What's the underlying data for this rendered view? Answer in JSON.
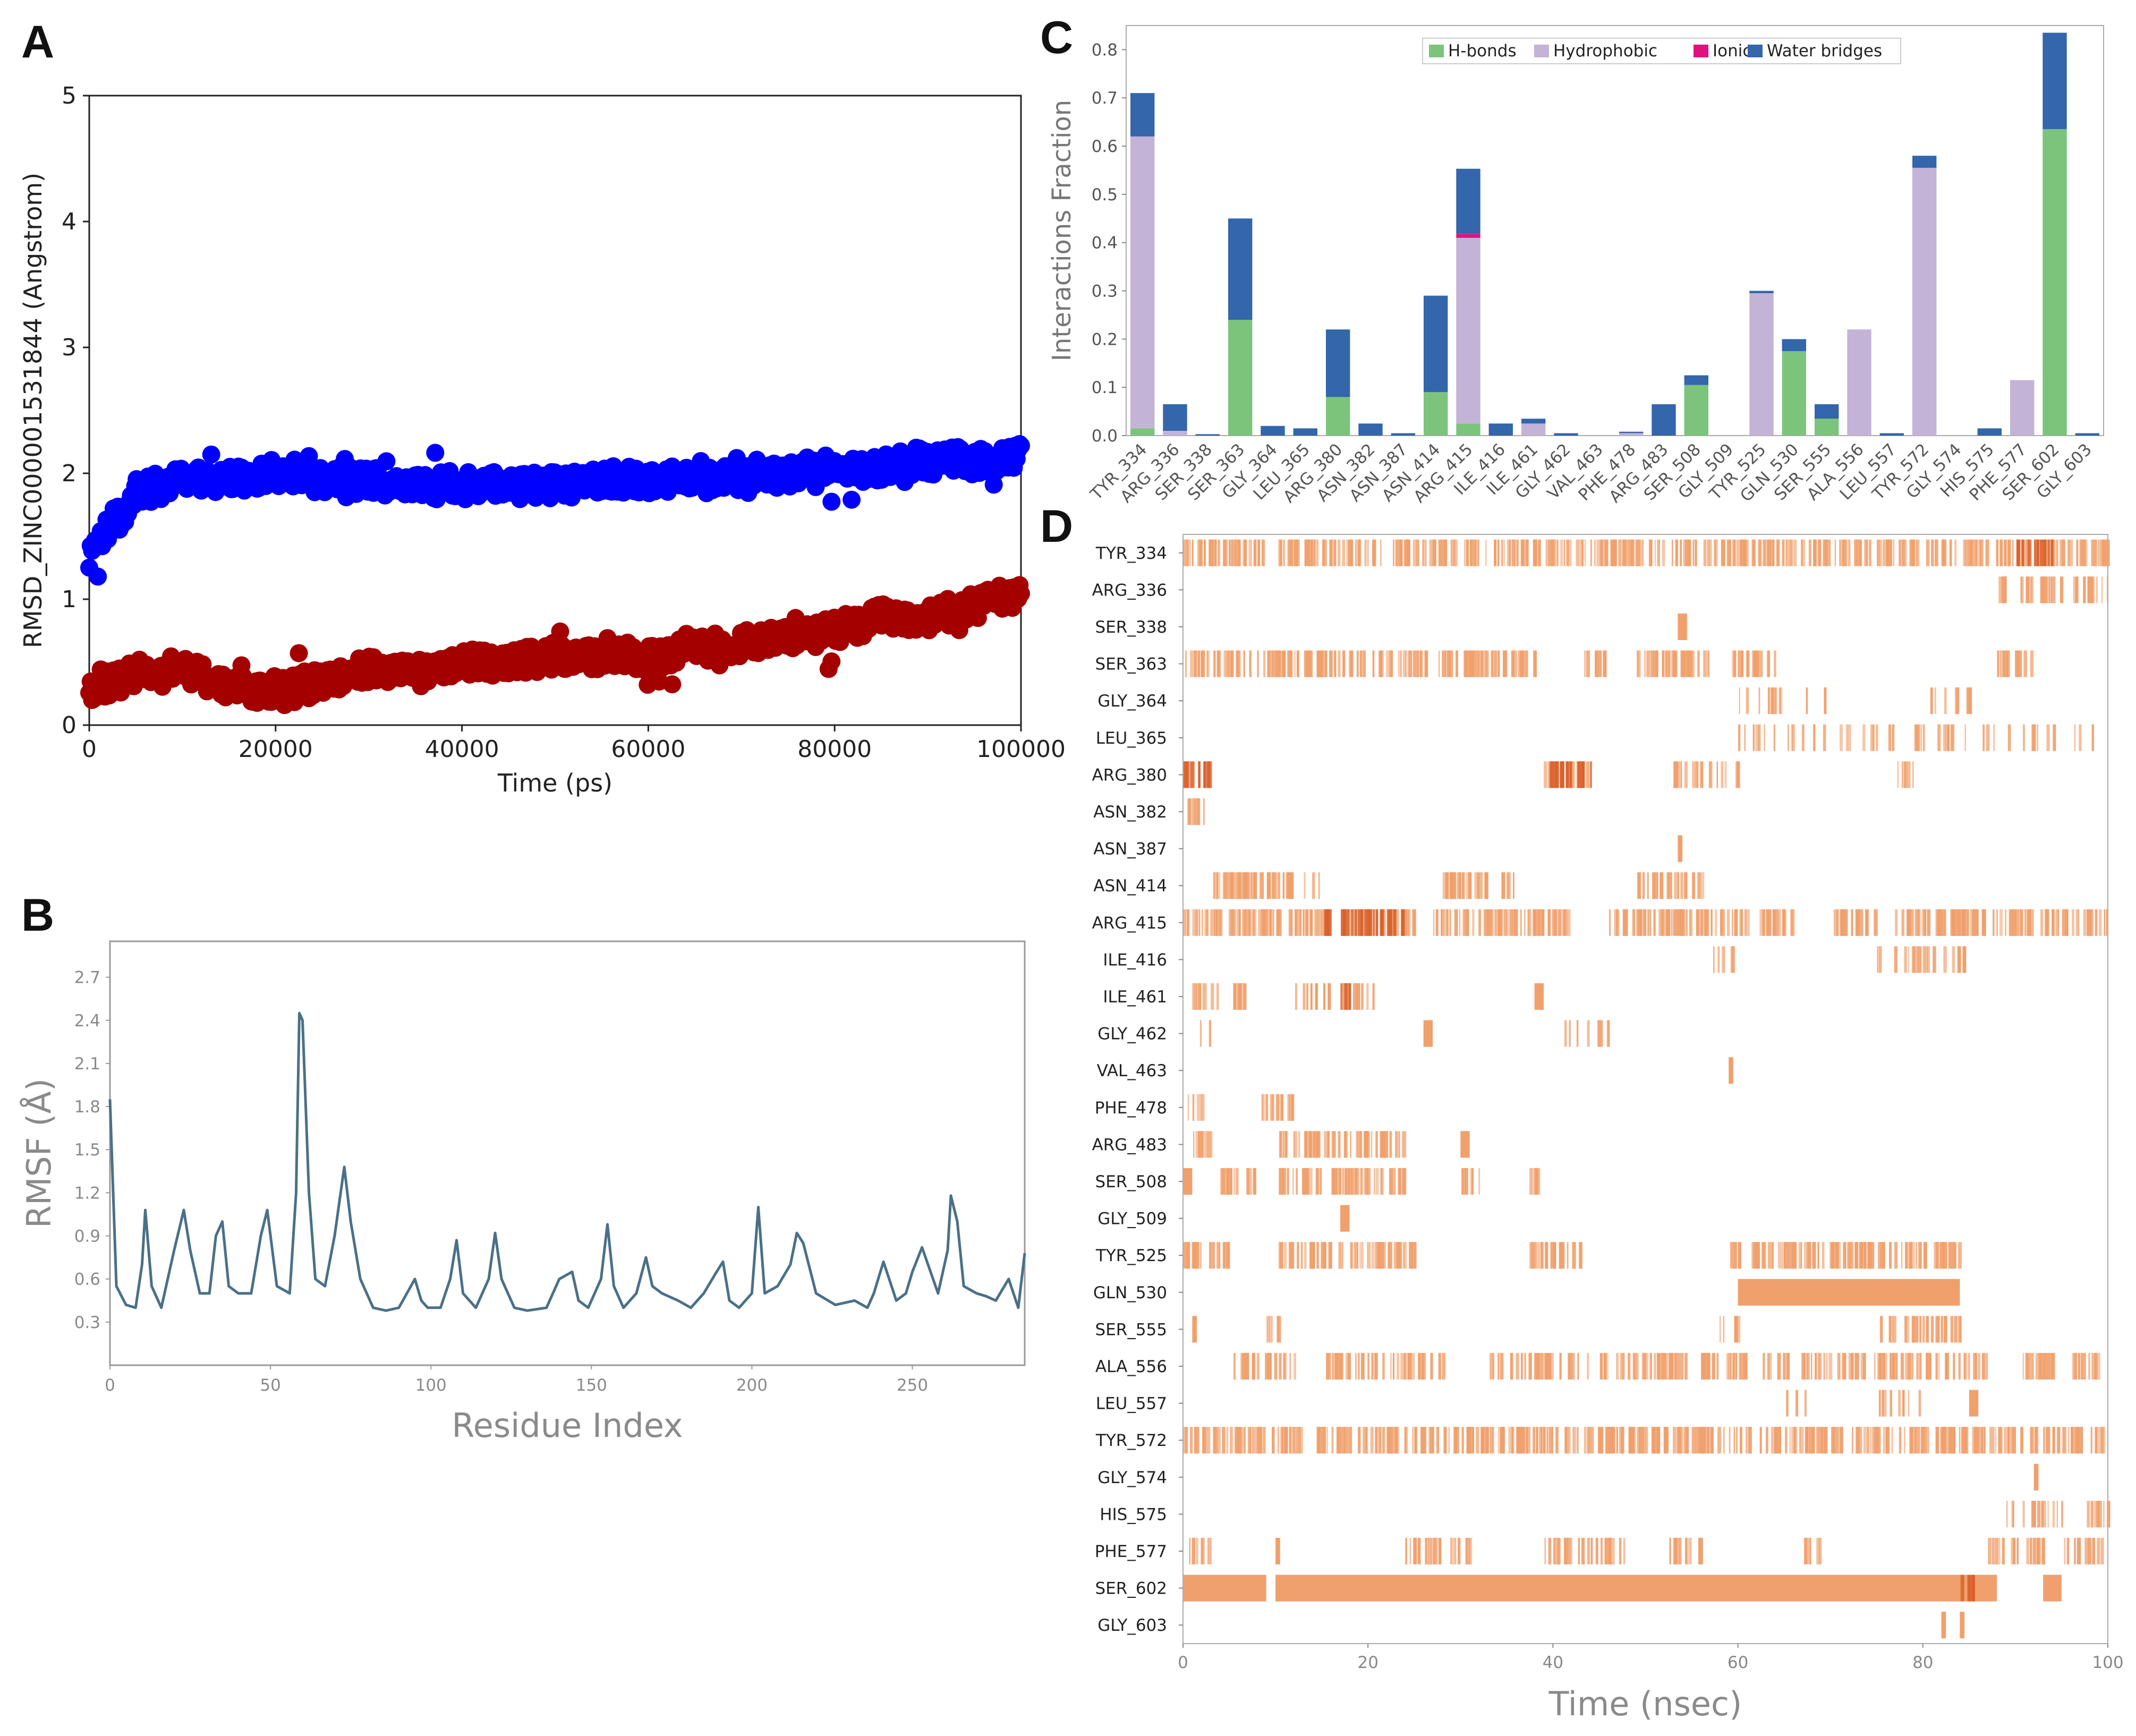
{
  "chart_data": [
    {
      "panel": "A",
      "type": "scatter",
      "title": "",
      "xlabel": "Time (ps)",
      "ylabel": "RMSD_ZINC000001531844 (Angstrom)",
      "xlim": [
        0,
        100000
      ],
      "ylim": [
        0,
        5
      ],
      "xticks": [
        "0",
        "20000",
        "40000",
        "60000",
        "80000",
        "100000"
      ],
      "yticks": [
        "0",
        "1",
        "2",
        "3",
        "4",
        "5"
      ],
      "series": [
        {
          "name": "blue",
          "color": "#0000ff",
          "x": [
            0,
            5000,
            10000,
            15000,
            20000,
            25000,
            30000,
            35000,
            40000,
            45000,
            50000,
            55000,
            60000,
            65000,
            70000,
            75000,
            80000,
            85000,
            90000,
            95000,
            100000
          ],
          "values": [
            1.3,
            1.85,
            1.95,
            1.95,
            2.0,
            1.95,
            1.95,
            1.9,
            1.9,
            1.9,
            1.9,
            1.95,
            1.95,
            1.95,
            1.95,
            2.0,
            2.05,
            2.05,
            2.1,
            2.1,
            2.15
          ]
        },
        {
          "name": "red",
          "color": "#a50000",
          "x": [
            0,
            5000,
            10000,
            15000,
            20000,
            25000,
            30000,
            35000,
            40000,
            45000,
            50000,
            55000,
            60000,
            65000,
            70000,
            75000,
            80000,
            85000,
            90000,
            95000,
            100000
          ],
          "values": [
            0.3,
            0.4,
            0.45,
            0.3,
            0.25,
            0.35,
            0.45,
            0.4,
            0.5,
            0.5,
            0.55,
            0.55,
            0.55,
            0.6,
            0.65,
            0.7,
            0.75,
            0.85,
            0.85,
            0.95,
            1.05
          ]
        }
      ]
    },
    {
      "panel": "B",
      "type": "line",
      "title": "",
      "xlabel": "Residue Index",
      "ylabel": "RMSF (Å)",
      "xlim": [
        0,
        285
      ],
      "ylim": [
        0,
        2.95
      ],
      "xticks": [
        "0",
        "50",
        "100",
        "150",
        "200",
        "250"
      ],
      "yticks": [
        "0.3",
        "0.6",
        "0.9",
        "1.2",
        "1.5",
        "1.8",
        "2.1",
        "2.4",
        "2.7"
      ],
      "line_color": "#4a7088",
      "x": [
        0,
        2,
        5,
        8,
        10,
        11,
        13,
        16,
        20,
        23,
        25,
        28,
        31,
        33,
        35,
        37,
        40,
        44,
        47,
        49,
        52,
        56,
        58,
        59,
        60,
        62,
        64,
        67,
        70,
        73,
        75,
        78,
        82,
        86,
        90,
        95,
        97,
        99,
        103,
        106,
        108,
        110,
        114,
        118,
        120,
        122,
        126,
        130,
        136,
        140,
        144,
        146,
        149,
        153,
        155,
        157,
        160,
        164,
        167,
        169,
        172,
        177,
        181,
        185,
        189,
        191,
        193,
        196,
        200,
        202,
        204,
        208,
        212,
        214,
        216,
        220,
        226,
        232,
        236,
        238,
        241,
        245,
        248,
        250,
        253,
        258,
        261,
        262,
        264,
        266,
        270,
        273,
        276,
        280,
        283,
        285
      ],
      "values": [
        1.85,
        0.55,
        0.42,
        0.4,
        0.7,
        1.08,
        0.55,
        0.4,
        0.8,
        1.08,
        0.8,
        0.5,
        0.5,
        0.9,
        1.0,
        0.55,
        0.5,
        0.5,
        0.9,
        1.08,
        0.55,
        0.5,
        1.2,
        2.45,
        2.4,
        1.2,
        0.6,
        0.55,
        0.9,
        1.38,
        1.0,
        0.6,
        0.4,
        0.38,
        0.4,
        0.6,
        0.45,
        0.4,
        0.4,
        0.6,
        0.87,
        0.5,
        0.4,
        0.6,
        0.92,
        0.6,
        0.4,
        0.38,
        0.4,
        0.6,
        0.65,
        0.45,
        0.4,
        0.6,
        0.98,
        0.55,
        0.4,
        0.5,
        0.75,
        0.55,
        0.5,
        0.45,
        0.4,
        0.5,
        0.65,
        0.72,
        0.45,
        0.4,
        0.5,
        1.1,
        0.5,
        0.55,
        0.7,
        0.92,
        0.85,
        0.5,
        0.42,
        0.45,
        0.4,
        0.5,
        0.72,
        0.45,
        0.5,
        0.65,
        0.82,
        0.5,
        0.8,
        1.18,
        1.0,
        0.55,
        0.5,
        0.48,
        0.45,
        0.6,
        0.4,
        0.78
      ]
    },
    {
      "panel": "C",
      "type": "bar",
      "stacked": true,
      "title": "",
      "xlabel": "",
      "ylabel": "Interactions Fraction",
      "ylim": [
        0,
        0.85
      ],
      "yticks": [
        "0.0",
        "0.1",
        "0.2",
        "0.3",
        "0.4",
        "0.5",
        "0.6",
        "0.7",
        "0.8"
      ],
      "legend_position": "top-center",
      "categories": [
        "TYR_334",
        "ARG_336",
        "SER_338",
        "SER_363",
        "GLY_364",
        "LEU_365",
        "ARG_380",
        "ASN_382",
        "ASN_387",
        "ASN_414",
        "ARG_415",
        "ILE_416",
        "ILE_461",
        "GLY_462",
        "VAL_463",
        "PHE_478",
        "ARG_483",
        "SER_508",
        "GLY_509",
        "TYR_525",
        "GLN_530",
        "SER_555",
        "ALA_556",
        "LEU_557",
        "TYR_572",
        "GLY_574",
        "HIS_575",
        "PHE_577",
        "SER_602",
        "GLY_603"
      ],
      "series": [
        {
          "name": "H-bonds",
          "color": "#7cc47c",
          "values": [
            0.015,
            0.0,
            0.0,
            0.24,
            0.0,
            0.0,
            0.08,
            0.0,
            0.0,
            0.09,
            0.025,
            0.0,
            0.0,
            0.0,
            0.0,
            0.0,
            0.0,
            0.105,
            0.0,
            0.0,
            0.175,
            0.035,
            0.0,
            0.0,
            0.0,
            0.0,
            0.0,
            0.0,
            0.635,
            0.0
          ]
        },
        {
          "name": "Hydrophobic",
          "color": "#c3b3d6",
          "values": [
            0.605,
            0.01,
            0.0,
            0.0,
            0.0,
            0.0,
            0.0,
            0.0,
            0.0,
            0.0,
            0.385,
            0.0,
            0.025,
            0.0,
            0.0,
            0.005,
            0.0,
            0.0,
            0.0,
            0.295,
            0.0,
            0.0,
            0.22,
            0.0,
            0.555,
            0.0,
            0.0,
            0.115,
            0.0,
            0.0
          ]
        },
        {
          "name": "Ionic",
          "color": "#e0117f",
          "values": [
            0.0,
            0.0,
            0.0,
            0.0,
            0.0,
            0.0,
            0.0,
            0.0,
            0.0,
            0.0,
            0.008,
            0.0,
            0.0,
            0.0,
            0.0,
            0.0,
            0.0,
            0.0,
            0.0,
            0.0,
            0.0,
            0.0,
            0.0,
            0.0,
            0.0,
            0.0,
            0.0,
            0.0,
            0.0,
            0.0
          ]
        },
        {
          "name": "Water bridges",
          "color": "#3366aa",
          "values": [
            0.09,
            0.055,
            0.003,
            0.21,
            0.02,
            0.015,
            0.14,
            0.025,
            0.005,
            0.2,
            0.135,
            0.025,
            0.01,
            0.005,
            0.0,
            0.003,
            0.065,
            0.02,
            0.0,
            0.005,
            0.025,
            0.03,
            0.0,
            0.005,
            0.025,
            0.0,
            0.015,
            0.0,
            0.2,
            0.005
          ]
        }
      ]
    },
    {
      "panel": "D",
      "type": "heatmap",
      "title": "",
      "xlabel": "Time (nsec)",
      "ylabel": "",
      "xlim": [
        0,
        100
      ],
      "xticks": [
        "0",
        "20",
        "40",
        "60",
        "80",
        "100"
      ],
      "color": "#f0a06c",
      "dark_color": "#d8602c",
      "rows": [
        {
          "label": "TYR_334",
          "density": 0.7,
          "segments": [
            [
              0,
              100
            ]
          ],
          "dark": [
            [
              90,
              94
            ]
          ]
        },
        {
          "label": "ARG_336",
          "density": 0.6,
          "segments": [
            [
              88,
              100
            ]
          ],
          "dark": []
        },
        {
          "label": "SER_338",
          "density": 0.6,
          "segments": [
            [
              53.5,
              54.5
            ]
          ],
          "dark": []
        },
        {
          "label": "SER_363",
          "density": 0.75,
          "segments": [
            [
              0,
              38
            ],
            [
              43,
              46
            ],
            [
              49,
              57
            ],
            [
              59,
              64
            ],
            [
              88,
              92
            ]
          ],
          "dark": []
        },
        {
          "label": "GLY_364",
          "density": 0.25,
          "segments": [
            [
              60,
              70
            ],
            [
              80,
              85
            ]
          ],
          "dark": []
        },
        {
          "label": "LEU_365",
          "density": 0.2,
          "segments": [
            [
              60,
              100
            ]
          ],
          "dark": []
        },
        {
          "label": "ARG_380",
          "density": 0.6,
          "segments": [
            [
              0,
              3
            ],
            [
              39,
              44.5
            ],
            [
              53,
              60
            ],
            [
              77,
              79
            ]
          ],
          "dark": [
            [
              0,
              3
            ],
            [
              39,
              44
            ]
          ]
        },
        {
          "label": "ASN_382",
          "density": 0.8,
          "segments": [
            [
              0,
              2.5
            ]
          ],
          "dark": []
        },
        {
          "label": "ASN_387",
          "density": 0.9,
          "segments": [
            [
              53.5,
              54
            ]
          ],
          "dark": []
        },
        {
          "label": "ASN_414",
          "density": 0.75,
          "segments": [
            [
              3,
              15
            ],
            [
              28,
              36
            ],
            [
              49,
              56
            ]
          ],
          "dark": []
        },
        {
          "label": "ARG_415",
          "density": 0.75,
          "segments": [
            [
              0,
              25
            ],
            [
              27,
              42
            ],
            [
              46,
              66
            ],
            [
              70,
              100
            ]
          ],
          "dark": [
            [
              15,
              24
            ]
          ]
        },
        {
          "label": "ILE_416",
          "density": 0.4,
          "segments": [
            [
              57,
              60
            ],
            [
              75,
              85
            ]
          ],
          "dark": []
        },
        {
          "label": "ILE_461",
          "density": 0.4,
          "segments": [
            [
              0.5,
              7
            ],
            [
              11,
              21
            ],
            [
              38,
              39
            ]
          ],
          "dark": [
            [
              17,
              18
            ]
          ]
        },
        {
          "label": "GLY_462",
          "density": 0.25,
          "segments": [
            [
              1,
              3
            ],
            [
              26,
              27
            ],
            [
              41,
              46
            ]
          ],
          "dark": []
        },
        {
          "label": "VAL_463",
          "density": 1.0,
          "segments": [
            [
              59,
              59.5
            ]
          ],
          "dark": []
        },
        {
          "label": "PHE_478",
          "density": 0.5,
          "segments": [
            [
              0.5,
              2
            ],
            [
              8,
              13
            ]
          ],
          "dark": []
        },
        {
          "label": "ARG_483",
          "density": 0.75,
          "segments": [
            [
              1,
              3
            ],
            [
              10,
              24
            ],
            [
              30,
              31
            ]
          ],
          "dark": []
        },
        {
          "label": "SER_508",
          "density": 0.75,
          "segments": [
            [
              0,
              1
            ],
            [
              4,
              8
            ],
            [
              10,
              24
            ],
            [
              30,
              32
            ],
            [
              37,
              38.5
            ]
          ],
          "dark": []
        },
        {
          "label": "GLY_509",
          "density": 0.6,
          "segments": [
            [
              17,
              18
            ]
          ],
          "dark": []
        },
        {
          "label": "TYR_525",
          "density": 0.75,
          "segments": [
            [
              0,
              5
            ],
            [
              10,
              25
            ],
            [
              37,
              43
            ],
            [
              59,
              84
            ]
          ],
          "dark": []
        },
        {
          "label": "GLN_530",
          "density": 0.95,
          "segments": [
            [
              60,
              84
            ]
          ],
          "dark": []
        },
        {
          "label": "SER_555",
          "density": 0.6,
          "segments": [
            [
              1,
              1.5
            ],
            [
              9,
              10.5
            ],
            [
              58,
              60
            ],
            [
              75,
              84
            ]
          ],
          "dark": []
        },
        {
          "label": "ALA_556",
          "density": 0.6,
          "segments": [
            [
              5,
              12
            ],
            [
              15,
              28
            ],
            [
              33,
              60
            ],
            [
              60,
              87
            ],
            [
              90,
              100
            ]
          ],
          "dark": []
        },
        {
          "label": "LEU_557",
          "density": 0.3,
          "segments": [
            [
              65,
              68
            ],
            [
              75,
              80
            ],
            [
              85,
              86
            ]
          ],
          "dark": []
        },
        {
          "label": "TYR_572",
          "density": 0.75,
          "segments": [
            [
              0,
              100
            ]
          ],
          "dark": []
        },
        {
          "label": "GLY_574",
          "density": 1.0,
          "segments": [
            [
              92,
              92.5
            ]
          ],
          "dark": []
        },
        {
          "label": "HIS_575",
          "density": 0.5,
          "segments": [
            [
              89,
              95
            ],
            [
              97,
              100
            ]
          ],
          "dark": []
        },
        {
          "label": "PHE_577",
          "density": 0.6,
          "segments": [
            [
              0.5,
              3
            ],
            [
              10,
              10.5
            ],
            [
              24,
              31
            ],
            [
              39,
              48
            ],
            [
              52,
              56
            ],
            [
              67,
              69
            ],
            [
              87,
              93
            ],
            [
              95,
              100
            ]
          ],
          "dark": []
        },
        {
          "label": "SER_602",
          "density": 1.0,
          "segments": [
            [
              0,
              9
            ],
            [
              10,
              88
            ],
            [
              93,
              95
            ]
          ],
          "dark": [
            [
              84,
              86
            ]
          ]
        },
        {
          "label": "GLY_603",
          "density": 0.9,
          "segments": [
            [
              82,
              82.5
            ],
            [
              84,
              84.5
            ]
          ],
          "dark": []
        }
      ]
    }
  ]
}
